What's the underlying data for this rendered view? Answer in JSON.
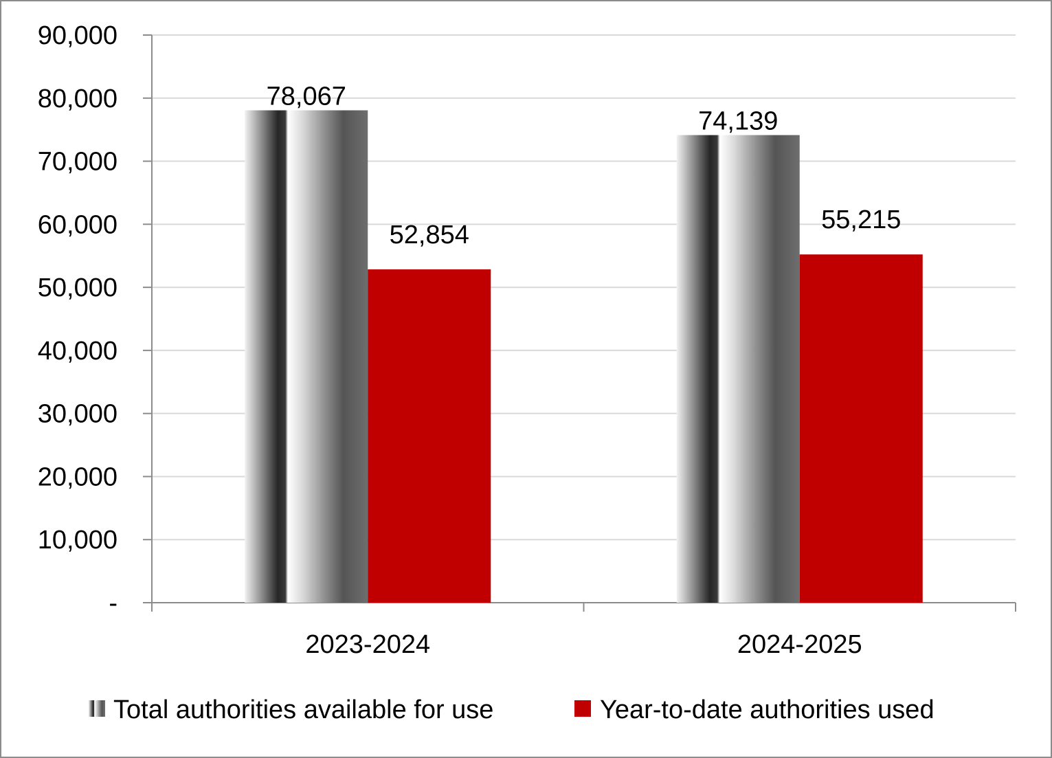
{
  "chart_data": {
    "type": "bar",
    "title": "",
    "xlabel": "",
    "ylabel": "",
    "categories": [
      "2023-2024",
      "2024-2025"
    ],
    "series": [
      {
        "name": "Total authorities available for use",
        "values": [
          78067,
          74139
        ],
        "value_labels": [
          "78,067",
          "74,139"
        ],
        "color": "#5a5a5a",
        "style": "metallic-gradient"
      },
      {
        "name": "Year-to-date authorities used",
        "values": [
          52854,
          55215
        ],
        "value_labels": [
          "52,854",
          "55,215"
        ],
        "color": "#c00000"
      }
    ],
    "ylim": [
      0,
      90000
    ],
    "yticks": [
      0,
      10000,
      20000,
      30000,
      40000,
      50000,
      60000,
      70000,
      80000,
      90000
    ],
    "ytick_labels": [
      "-",
      "10,000",
      "20,000",
      "30,000",
      "40,000",
      "50,000",
      "60,000",
      "70,000",
      "80,000",
      "90,000"
    ],
    "grid": true,
    "legend_position": "bottom"
  }
}
